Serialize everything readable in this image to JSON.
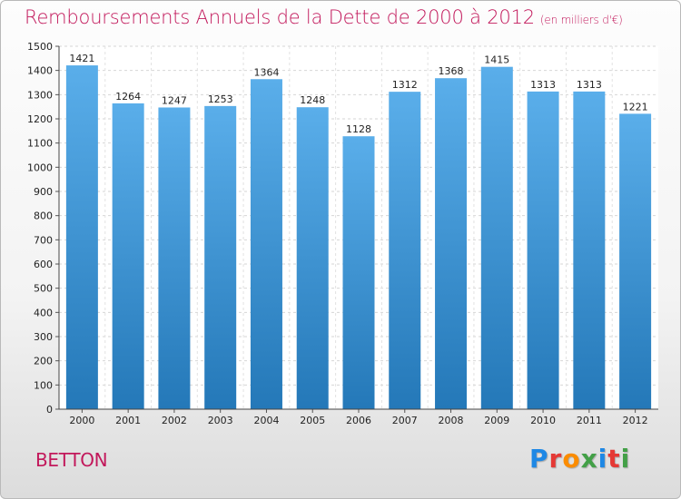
{
  "header": {
    "title": "Remboursements Annuels de la Dette de 2000 à 2012",
    "unit": "(en milliers d'€)"
  },
  "footer": {
    "commune": "BETTON",
    "logo_text": "Proxiti",
    "logo_colors": [
      "#1e88e5",
      "#e53935",
      "#fb8c00",
      "#43a047",
      "#1e88e5",
      "#e53935",
      "#43a047"
    ]
  },
  "chart_data": {
    "type": "bar",
    "title": "Remboursements Annuels de la Dette de 2000 à 2012",
    "xlabel": "",
    "ylabel": "",
    "categories": [
      "2000",
      "2001",
      "2002",
      "2003",
      "2004",
      "2005",
      "2006",
      "2007",
      "2008",
      "2009",
      "2010",
      "2011",
      "2012"
    ],
    "values": [
      1421,
      1264,
      1247,
      1253,
      1364,
      1248,
      1128,
      1312,
      1368,
      1415,
      1313,
      1313,
      1221
    ],
    "ylim": [
      0,
      1500
    ],
    "yticks": [
      0,
      100,
      200,
      300,
      400,
      500,
      600,
      700,
      800,
      900,
      1000,
      1100,
      1200,
      1300,
      1400,
      1500
    ],
    "grid": true,
    "bar_color_top": "#5aaeea",
    "bar_color_bottom": "#2478b8"
  }
}
